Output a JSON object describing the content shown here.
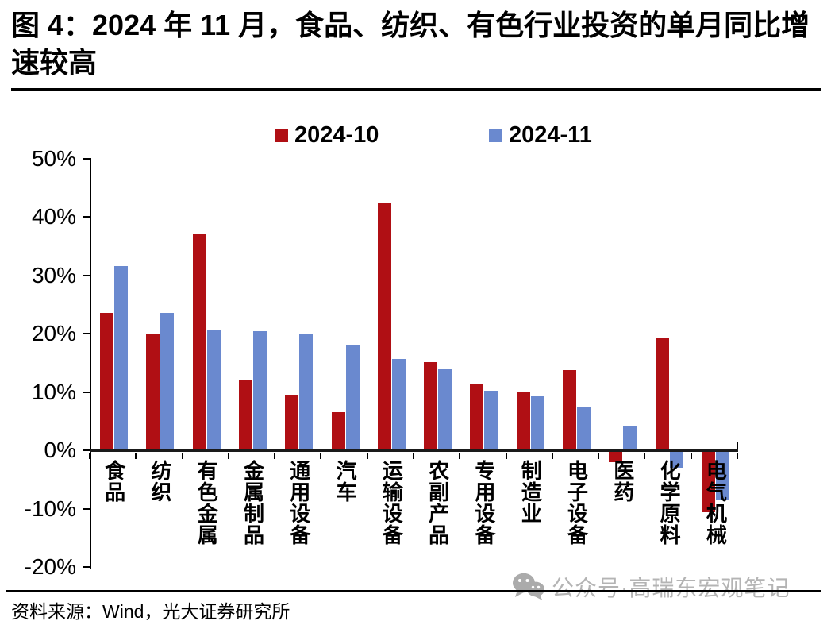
{
  "title": "图 4：2024 年 11 月，食品、纺织、有色行业投资的单月同比增速较高",
  "legend": {
    "item1": "2024-10",
    "item2": "2024-11"
  },
  "colors": {
    "series_2024_10": "#B00F14",
    "series_2024_11": "#6A89CF",
    "axis": "#000000",
    "watermark_gray": "#b4b4b4"
  },
  "chart_data": {
    "type": "bar",
    "title": "图 4：2024 年 11 月，食品、纺织、有色行业投资的单月同比增速较高",
    "categories": [
      "食品",
      "纺织",
      "有色金属",
      "金属制品",
      "通用设备",
      "汽车",
      "运输设备",
      "农副产品",
      "专用设备",
      "制造业",
      "电子设备",
      "医药",
      "化学原料",
      "电气机械"
    ],
    "series": [
      {
        "name": "2024-10",
        "color": "#B00F14",
        "values": [
          23.5,
          19.8,
          37.0,
          12.1,
          9.4,
          6.5,
          42.5,
          15.1,
          11.3,
          9.9,
          13.8,
          -1.8,
          19.2,
          -10.4
        ]
      },
      {
        "name": "2024-11",
        "color": "#6A89CF",
        "values": [
          31.6,
          23.5,
          20.6,
          20.4,
          20.0,
          18.1,
          15.6,
          13.9,
          10.2,
          9.3,
          7.4,
          4.2,
          -2.7,
          -8.2
        ]
      }
    ],
    "xlabel": "",
    "ylabel": "",
    "y_ticks": [
      "50%",
      "40%",
      "30%",
      "20%",
      "10%",
      "0%",
      "-10%",
      "-20%"
    ],
    "ylim": [
      -20,
      50
    ],
    "grid": false,
    "legend_position": "top-center",
    "unit": "percent"
  },
  "footer": {
    "source": "资料来源：Wind，光大证券研究所",
    "watermark": "公众号·高瑞东宏观笔记"
  }
}
